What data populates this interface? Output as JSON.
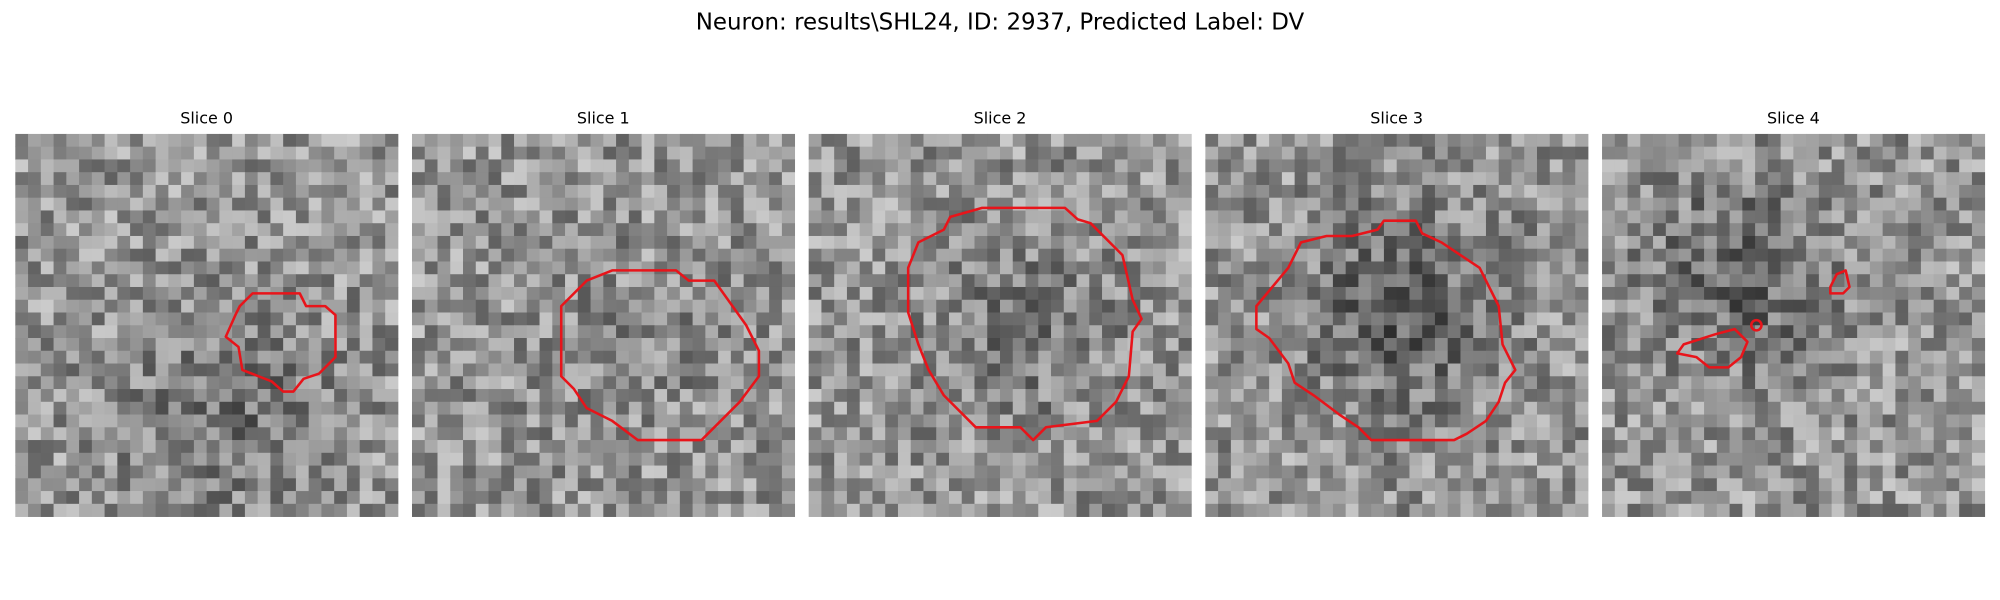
{
  "header": {
    "title": "Neuron: results\\SHL24, ID: 2937, Predicted Label: DV"
  },
  "panels": [
    {
      "label": "Slice 0"
    },
    {
      "label": "Slice 1"
    },
    {
      "label": "Slice 2"
    },
    {
      "label": "Slice 3"
    },
    {
      "label": "Slice 4"
    }
  ]
}
